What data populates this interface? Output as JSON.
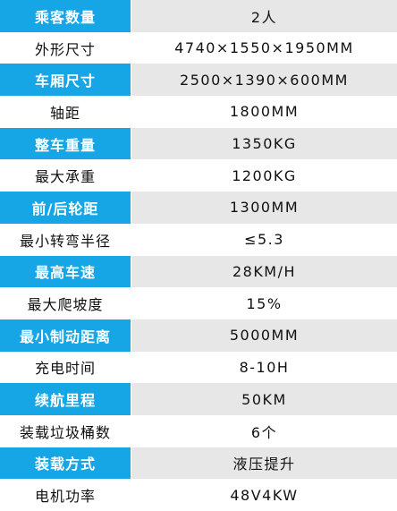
{
  "specs": [
    {
      "label": "乘客数量",
      "value": "2人"
    },
    {
      "label": "外形尺寸",
      "value": "4740×1550×1950MM"
    },
    {
      "label": "车厢尺寸",
      "value": "2500×1390×600MM"
    },
    {
      "label": "轴距",
      "value": "1800MM"
    },
    {
      "label": "整车重量",
      "value": "1350KG"
    },
    {
      "label": "最大承重",
      "value": "1200KG"
    },
    {
      "label": "前/后轮距",
      "value": "1300MM"
    },
    {
      "label": "最小转弯半径",
      "value": "≤5.3"
    },
    {
      "label": "最高车速",
      "value": "28KM/H"
    },
    {
      "label": "最大爬坡度",
      "value": "15%"
    },
    {
      "label": "最小制动距离",
      "value": "5000MM"
    },
    {
      "label": "充电时间",
      "value": "8-10H"
    },
    {
      "label": "续航里程",
      "value": "50KM"
    },
    {
      "label": "装载垃圾桶数",
      "value": "6个"
    },
    {
      "label": "装载方式",
      "value": "液压提升"
    },
    {
      "label": "电机功率",
      "value": "48V4KW"
    }
  ],
  "colors": {
    "label_band": "#16a6e6",
    "value_band": "#e7e7e7",
    "plain": "#ffffff",
    "text_dark": "#111111",
    "text_light": "#ffffff"
  }
}
